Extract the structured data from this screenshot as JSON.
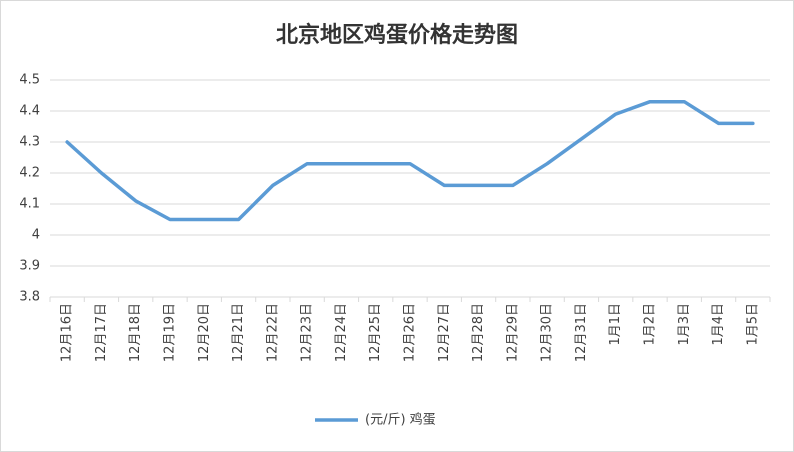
{
  "chart_data": {
    "type": "line",
    "title": "北京地区鸡蛋价格走势图",
    "categories": [
      "12月16日",
      "12月17日",
      "12月18日",
      "12月19日",
      "12月20日",
      "12月21日",
      "12月22日",
      "12月23日",
      "12月24日",
      "12月25日",
      "12月26日",
      "12月27日",
      "12月28日",
      "12月29日",
      "12月30日",
      "12月31日",
      "1月1日",
      "1月2日",
      "1月3日",
      "1月4日",
      "1月5日"
    ],
    "series": [
      {
        "name": "(元/斤) 鸡蛋",
        "color": "#5b9bd5",
        "values": [
          4.3,
          4.2,
          4.11,
          4.05,
          4.05,
          4.05,
          4.16,
          4.23,
          4.23,
          4.23,
          4.23,
          4.16,
          4.16,
          4.16,
          4.23,
          4.31,
          4.39,
          4.43,
          4.43,
          4.36,
          4.36
        ]
      }
    ],
    "ylim": [
      3.8,
      4.5
    ],
    "yticks": [
      3.8,
      3.9,
      4,
      4.1,
      4.2,
      4.3,
      4.4,
      4.5
    ],
    "grid": true,
    "legend": "bottom"
  }
}
